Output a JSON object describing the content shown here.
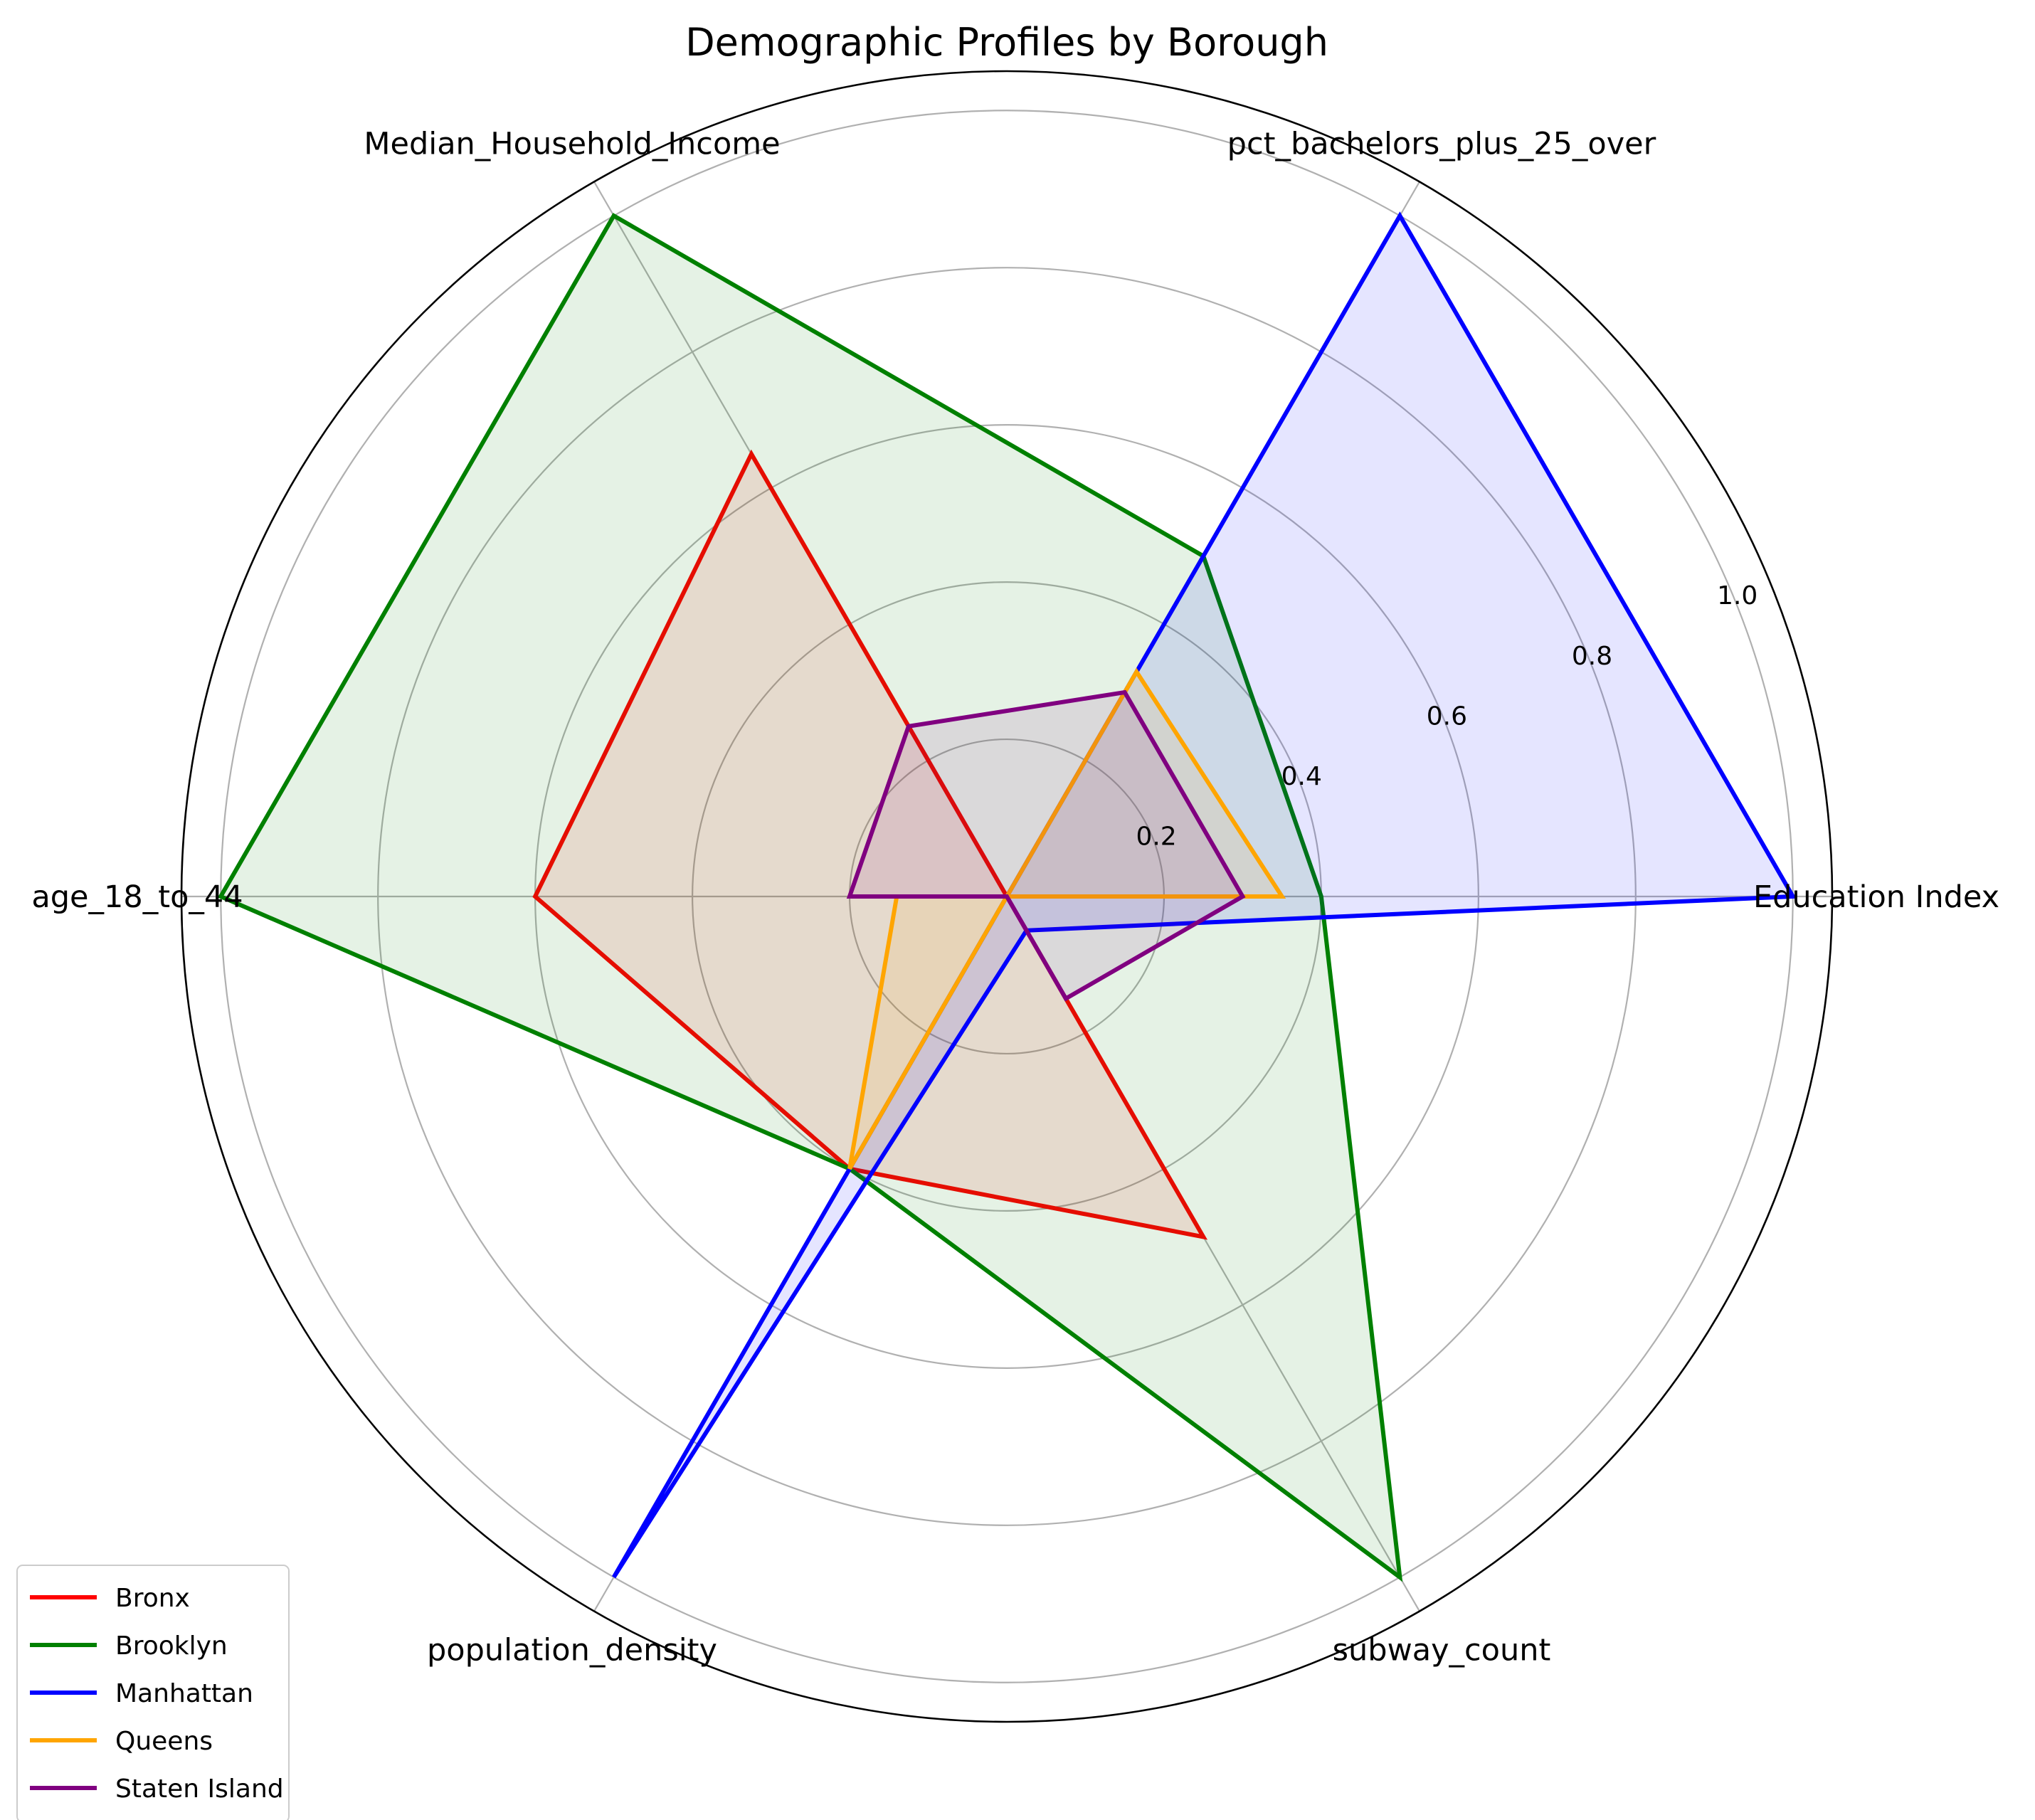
{
  "chart_data": {
    "type": "radar",
    "title": "Demographic Profiles by Borough",
    "axes": [
      "Education Index",
      "pct_bachelors_plus_25_over",
      "Median_Household_Income",
      "age_18_to_44",
      "population_density",
      "subway_count"
    ],
    "rlim": [
      0,
      1.05
    ],
    "radial_ticks": [
      0.2,
      0.4,
      0.6,
      0.8,
      1.0
    ],
    "radial_tick_labels": [
      "0.2",
      "0.4",
      "0.6",
      "0.8",
      "1.0"
    ],
    "grid": true,
    "legend_position": "lower-left",
    "series": [
      {
        "name": "Bronx",
        "color": "#ff0000",
        "values": [
          0.0,
          0.0,
          0.65,
          0.6,
          0.4,
          0.5
        ]
      },
      {
        "name": "Brooklyn",
        "color": "#008000",
        "values": [
          0.4,
          0.5,
          1.0,
          1.0,
          0.4,
          1.0
        ]
      },
      {
        "name": "Manhattan",
        "color": "#0000ff",
        "values": [
          1.0,
          1.0,
          0.0,
          0.0,
          1.0,
          0.05
        ]
      },
      {
        "name": "Queens",
        "color": "#ffa500",
        "values": [
          0.35,
          0.33,
          0.0,
          0.14,
          0.4,
          0.0
        ]
      },
      {
        "name": "Staten Island",
        "color": "#800080",
        "values": [
          0.3,
          0.3,
          0.25,
          0.2,
          0.0,
          0.15
        ]
      }
    ]
  }
}
